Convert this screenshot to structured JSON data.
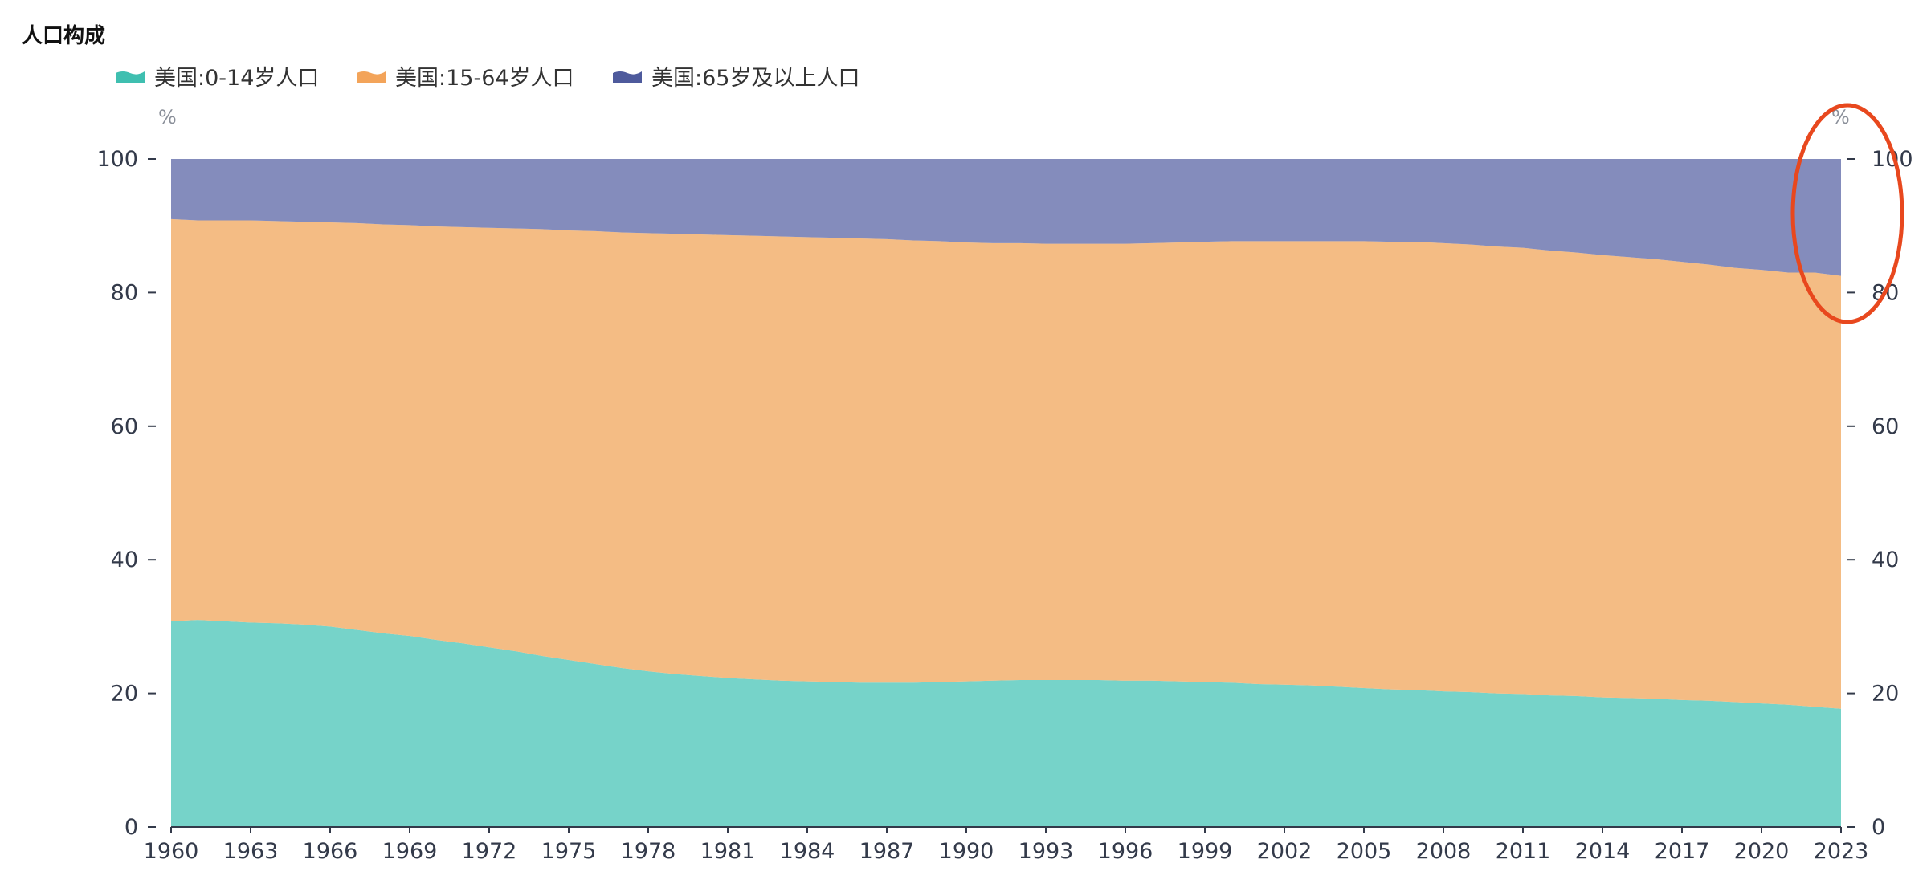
{
  "header": {
    "title": "人口构成"
  },
  "colors": {
    "series_0_14": "#5ecbbf",
    "series_15_64": "#f2b06e",
    "series_65plus": "#6e78b0",
    "axis": "#333a4a",
    "annotation": "#e8481e"
  },
  "legend": [
    {
      "label": "美国:0-14岁人口",
      "color": "#3fbfb0"
    },
    {
      "label": "美国:15-64岁人口",
      "color": "#f3a45a"
    },
    {
      "label": "美国:65岁及以上人口",
      "color": "#4e5a9c"
    }
  ],
  "chart_data": {
    "type": "area",
    "stacked": true,
    "title": "人口构成",
    "x": [
      1960,
      1961,
      1962,
      1963,
      1964,
      1965,
      1966,
      1967,
      1968,
      1969,
      1970,
      1971,
      1972,
      1973,
      1974,
      1975,
      1976,
      1977,
      1978,
      1979,
      1980,
      1981,
      1982,
      1983,
      1984,
      1985,
      1986,
      1987,
      1988,
      1989,
      1990,
      1991,
      1992,
      1993,
      1994,
      1995,
      1996,
      1997,
      1998,
      1999,
      2000,
      2001,
      2002,
      2003,
      2004,
      2005,
      2006,
      2007,
      2008,
      2009,
      2010,
      2011,
      2012,
      2013,
      2014,
      2015,
      2016,
      2017,
      2018,
      2019,
      2020,
      2021,
      2022,
      2023
    ],
    "x_ticks": [
      "1960",
      "1963",
      "1966",
      "1969",
      "1972",
      "1975",
      "1978",
      "1981",
      "1984",
      "1987",
      "1990",
      "1993",
      "1996",
      "1999",
      "2002",
      "2005",
      "2008",
      "2011",
      "2014",
      "2017",
      "2020",
      "2023"
    ],
    "series": [
      {
        "name": "美国:0-14岁人口",
        "values": [
          30.8,
          31.0,
          30.8,
          30.6,
          30.5,
          30.3,
          30.0,
          29.5,
          29.0,
          28.6,
          28.0,
          27.5,
          26.9,
          26.3,
          25.6,
          25.0,
          24.4,
          23.8,
          23.3,
          22.9,
          22.6,
          22.3,
          22.1,
          21.9,
          21.8,
          21.7,
          21.6,
          21.6,
          21.6,
          21.7,
          21.8,
          21.9,
          22.0,
          22.0,
          22.0,
          22.0,
          21.9,
          21.9,
          21.8,
          21.7,
          21.6,
          21.4,
          21.3,
          21.2,
          21.0,
          20.8,
          20.6,
          20.5,
          20.3,
          20.2,
          20.0,
          19.9,
          19.7,
          19.6,
          19.4,
          19.3,
          19.2,
          19.0,
          18.9,
          18.7,
          18.5,
          18.3,
          18.0,
          17.7
        ]
      },
      {
        "name": "美国:15-64岁人口",
        "values": [
          60.2,
          59.8,
          60.0,
          60.2,
          60.2,
          60.3,
          60.5,
          60.9,
          61.2,
          61.5,
          61.9,
          62.3,
          62.8,
          63.3,
          63.9,
          64.3,
          64.8,
          65.2,
          65.6,
          65.9,
          66.1,
          66.3,
          66.4,
          66.5,
          66.5,
          66.5,
          66.5,
          66.4,
          66.2,
          66.0,
          65.7,
          65.5,
          65.4,
          65.3,
          65.3,
          65.3,
          65.4,
          65.5,
          65.7,
          65.9,
          66.1,
          66.3,
          66.4,
          66.5,
          66.7,
          66.9,
          67.0,
          67.1,
          67.1,
          67.0,
          66.9,
          66.8,
          66.6,
          66.4,
          66.2,
          66.0,
          65.8,
          65.6,
          65.3,
          65.0,
          64.9,
          64.7,
          65.0,
          64.8
        ]
      },
      {
        "name": "美国:65岁及以上人口",
        "values": [
          9.0,
          9.2,
          9.2,
          9.2,
          9.3,
          9.4,
          9.5,
          9.6,
          9.8,
          9.9,
          10.1,
          10.2,
          10.3,
          10.4,
          10.5,
          10.7,
          10.8,
          11.0,
          11.1,
          11.2,
          11.3,
          11.4,
          11.5,
          11.6,
          11.7,
          11.8,
          11.9,
          12.0,
          12.2,
          12.3,
          12.5,
          12.6,
          12.6,
          12.7,
          12.7,
          12.7,
          12.7,
          12.6,
          12.5,
          12.4,
          12.3,
          12.3,
          12.3,
          12.3,
          12.3,
          12.3,
          12.4,
          12.4,
          12.6,
          12.8,
          13.1,
          13.3,
          13.7,
          14.0,
          14.4,
          14.7,
          15.0,
          15.4,
          15.8,
          16.3,
          16.6,
          17.0,
          17.0,
          17.5
        ]
      }
    ],
    "y_left": {
      "unit": "%",
      "min": 0,
      "max": 100,
      "ticks": [
        "0",
        "20",
        "40",
        "60",
        "80",
        "100"
      ]
    },
    "y_right": {
      "unit": "%",
      "min": 0,
      "max": 100,
      "ticks": [
        "0",
        "20",
        "40",
        "60",
        "80",
        "100"
      ]
    },
    "grid": false,
    "legend_position": "top-left",
    "annotation": "red circle around 2020-2023 near top"
  }
}
